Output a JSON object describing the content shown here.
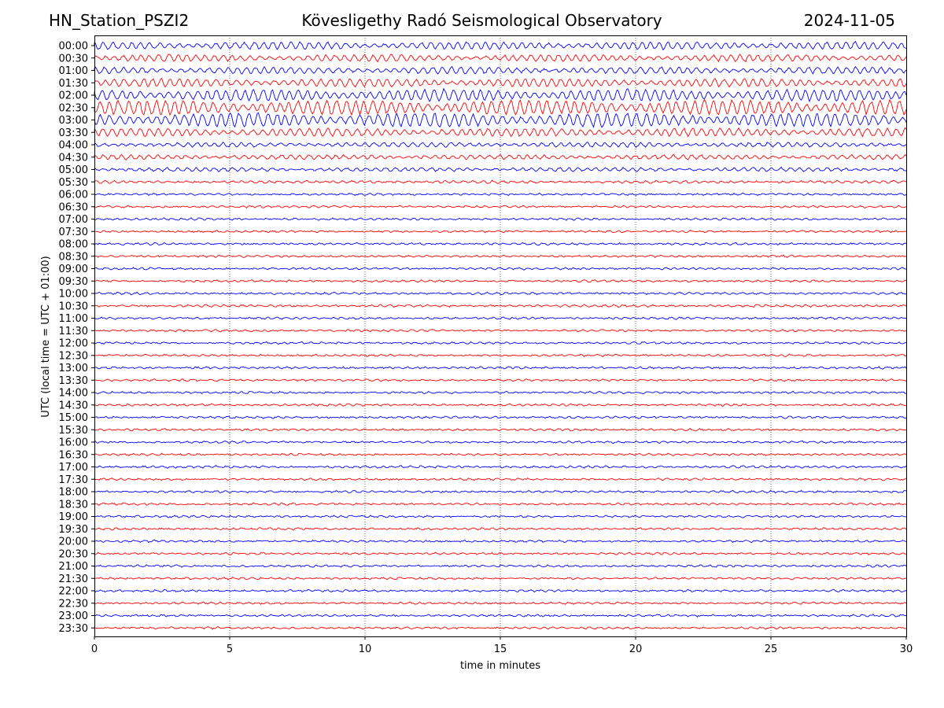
{
  "chart_data": {
    "type": "line",
    "title_left": "HN_Station_PSZI2",
    "title": "Kövesligethy Radó Seismological Observatory",
    "title_right": "2024-11-05",
    "xlabel": "time in minutes",
    "ylabel": "UTC (local time = UTC + 01:00)",
    "xlim": [
      0,
      30
    ],
    "xticks": [
      "0",
      "5",
      "10",
      "15",
      "20",
      "25",
      "30"
    ],
    "grid": "vertical dotted lines at each x tick",
    "trace_colors": [
      "#0000ff",
      "#ff0000"
    ],
    "rows": [
      {
        "label": "00:00",
        "amplitude": 0.5
      },
      {
        "label": "00:30",
        "amplitude": 0.45
      },
      {
        "label": "01:00",
        "amplitude": 0.45
      },
      {
        "label": "01:30",
        "amplitude": 0.55
      },
      {
        "label": "02:00",
        "amplitude": 0.8
      },
      {
        "label": "02:30",
        "amplitude": 1.0
      },
      {
        "label": "03:00",
        "amplitude": 0.95
      },
      {
        "label": "03:30",
        "amplitude": 0.55
      },
      {
        "label": "04:00",
        "amplitude": 0.3
      },
      {
        "label": "04:30",
        "amplitude": 0.3
      },
      {
        "label": "05:00",
        "amplitude": 0.25
      },
      {
        "label": "05:30",
        "amplitude": 0.15
      },
      {
        "label": "06:00",
        "amplitude": 0.1
      },
      {
        "label": "06:30",
        "amplitude": 0.1
      },
      {
        "label": "07:00",
        "amplitude": 0.1
      },
      {
        "label": "07:30",
        "amplitude": 0.1
      },
      {
        "label": "08:00",
        "amplitude": 0.1
      },
      {
        "label": "08:30",
        "amplitude": 0.1
      },
      {
        "label": "09:00",
        "amplitude": 0.1
      },
      {
        "label": "09:30",
        "amplitude": 0.1
      },
      {
        "label": "10:00",
        "amplitude": 0.1
      },
      {
        "label": "10:30",
        "amplitude": 0.12
      },
      {
        "label": "11:00",
        "amplitude": 0.1
      },
      {
        "label": "11:30",
        "amplitude": 0.1
      },
      {
        "label": "12:00",
        "amplitude": 0.1
      },
      {
        "label": "12:30",
        "amplitude": 0.1
      },
      {
        "label": "13:00",
        "amplitude": 0.1
      },
      {
        "label": "13:30",
        "amplitude": 0.1
      },
      {
        "label": "14:00",
        "amplitude": 0.1
      },
      {
        "label": "14:30",
        "amplitude": 0.1
      },
      {
        "label": "15:00",
        "amplitude": 0.1
      },
      {
        "label": "15:30",
        "amplitude": 0.1
      },
      {
        "label": "16:00",
        "amplitude": 0.1
      },
      {
        "label": "16:30",
        "amplitude": 0.1
      },
      {
        "label": "17:00",
        "amplitude": 0.12
      },
      {
        "label": "17:30",
        "amplitude": 0.1
      },
      {
        "label": "18:00",
        "amplitude": 0.1
      },
      {
        "label": "18:30",
        "amplitude": 0.1
      },
      {
        "label": "19:00",
        "amplitude": 0.1
      },
      {
        "label": "19:30",
        "amplitude": 0.1
      },
      {
        "label": "20:00",
        "amplitude": 0.1
      },
      {
        "label": "20:30",
        "amplitude": 0.1
      },
      {
        "label": "21:00",
        "amplitude": 0.1
      },
      {
        "label": "21:30",
        "amplitude": 0.1
      },
      {
        "label": "22:00",
        "amplitude": 0.1
      },
      {
        "label": "22:30",
        "amplitude": 0.1
      },
      {
        "label": "23:00",
        "amplitude": 0.1
      },
      {
        "label": "23:30",
        "amplitude": 0.1
      }
    ]
  }
}
